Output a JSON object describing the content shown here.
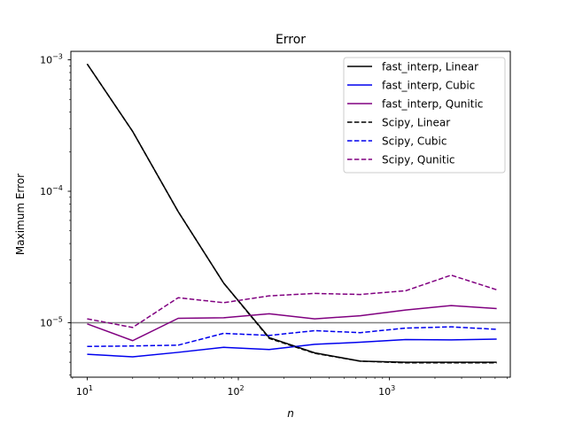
{
  "chart_data": {
    "type": "line",
    "title": "Error",
    "xlabel": "n",
    "ylabel": "Maximum Error",
    "xscale": "log",
    "yscale": "log",
    "xlim": [
      7.8,
      6300
    ],
    "ylim": [
      3.85e-06,
      0.00116
    ],
    "xticks": [
      {
        "value": 10,
        "base": "10",
        "exp": "1"
      },
      {
        "value": 100,
        "base": "10",
        "exp": "2"
      },
      {
        "value": 1000,
        "base": "10",
        "exp": "3"
      }
    ],
    "yticks": [
      {
        "value": 1e-05,
        "base": "10",
        "exp": "−5"
      },
      {
        "value": 0.0001,
        "base": "10",
        "exp": "−4"
      },
      {
        "value": 0.001,
        "base": "10",
        "exp": "−3"
      }
    ],
    "x": [
      10,
      20,
      40,
      80,
      160,
      320,
      640,
      1280,
      2560,
      5120
    ],
    "reference_line": {
      "y": 1e-05,
      "color": "#808080"
    },
    "legend_position": "top-right",
    "series": [
      {
        "name": "fast_interp, Linear",
        "color": "#000000",
        "dashed": false,
        "values": [
          0.00093,
          0.000285,
          7e-05,
          2e-05,
          7.7e-06,
          5.9e-06,
          5.1e-06,
          5e-06,
          5e-06,
          5e-06
        ]
      },
      {
        "name": "fast_interp, Cubic",
        "color": "#0000ee",
        "dashed": false,
        "values": [
          5.75e-06,
          5.5e-06,
          5.95e-06,
          6.5e-06,
          6.25e-06,
          6.85e-06,
          7.1e-06,
          7.45e-06,
          7.4e-06,
          7.5e-06
        ]
      },
      {
        "name": "fast_interp, Qunitic",
        "color": "#800080",
        "dashed": false,
        "values": [
          9.8e-06,
          7.3e-06,
          1.08e-05,
          1.09e-05,
          1.17e-05,
          1.07e-05,
          1.13e-05,
          1.25e-05,
          1.35e-05,
          1.28e-05
        ]
      },
      {
        "name": "Scipy, Linear",
        "color": "#000000",
        "dashed": true,
        "values": [
          0.00093,
          0.000285,
          7e-05,
          2e-05,
          7.6e-06,
          5.85e-06,
          5.1e-06,
          4.95e-06,
          4.95e-06,
          4.95e-06
        ]
      },
      {
        "name": "Scipy, Cubic",
        "color": "#0000ee",
        "dashed": true,
        "values": [
          6.6e-06,
          6.65e-06,
          6.75e-06,
          8.3e-06,
          8e-06,
          8.7e-06,
          8.4e-06,
          9.1e-06,
          9.3e-06,
          8.9e-06
        ]
      },
      {
        "name": "Scipy, Qunitic",
        "color": "#800080",
        "dashed": true,
        "values": [
          1.07e-05,
          9.2e-06,
          1.55e-05,
          1.42e-05,
          1.6e-05,
          1.67e-05,
          1.64e-05,
          1.75e-05,
          2.3e-05,
          1.78e-05
        ]
      }
    ]
  }
}
